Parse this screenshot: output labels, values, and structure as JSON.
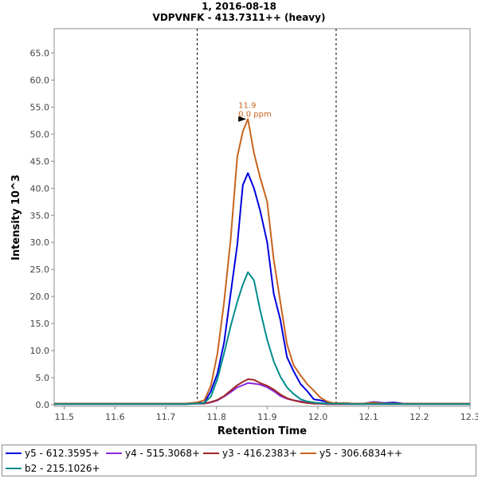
{
  "chart_data": {
    "type": "line",
    "title": "1, 2016-08-18",
    "subtitle": "VDPVNFK - 413.7311++ (heavy)",
    "xlabel": "Retention Time",
    "ylabel": "Intensity 10^3",
    "xlim": [
      11.48,
      12.3
    ],
    "ylim": [
      -0.3,
      69.5
    ],
    "x_ticks": [
      11.5,
      11.6,
      11.7,
      11.8,
      11.9,
      12.0,
      12.1,
      12.2,
      12.3
    ],
    "x_tick_labels": [
      "11.5",
      "11.6",
      "11.7",
      "11.8",
      "11.9",
      "12.0",
      "12.1",
      "12.2",
      "12.3"
    ],
    "y_ticks": [
      0,
      5,
      10,
      15,
      20,
      25,
      30,
      35,
      40,
      45,
      50,
      55,
      60,
      65
    ],
    "y_tick_labels": [
      "0.0",
      "5.0",
      "10.0",
      "15.0",
      "20.0",
      "25.0",
      "30.0",
      "35.0",
      "40.0",
      "45.0",
      "50.0",
      "55.0",
      "60.0",
      "65.0"
    ],
    "grid": false,
    "legend_position": "bottom",
    "boundaries": [
      11.762,
      12.036
    ],
    "annotation": {
      "label_rt": "11.9",
      "label_ppm": "0.0 ppm",
      "x": 11.862,
      "y": 52.8,
      "color": "#c8641e"
    },
    "x": [
      11.48,
      11.5,
      11.55,
      11.6,
      11.65,
      11.7,
      11.74,
      11.76,
      11.776,
      11.789,
      11.802,
      11.815,
      11.828,
      11.841,
      11.852,
      11.862,
      11.874,
      11.886,
      11.9,
      11.913,
      11.926,
      11.939,
      11.952,
      11.966,
      11.979,
      11.992,
      12.005,
      12.018,
      12.03,
      12.05,
      12.07,
      12.09,
      12.11,
      12.13,
      12.15,
      12.17,
      12.2,
      12.25,
      12.3
    ],
    "series": [
      {
        "name": "y5 - 612.3595+",
        "color": "#0000dc",
        "values": [
          0.2,
          0.2,
          0.2,
          0.2,
          0.2,
          0.2,
          0.2,
          0.4,
          0.3,
          2.5,
          5.8,
          11.5,
          20.5,
          29.5,
          40.6,
          42.8,
          40.0,
          35.9,
          30.0,
          20.5,
          15.7,
          8.8,
          6.2,
          3.8,
          2.5,
          1.0,
          0.8,
          0.5,
          0.2,
          0.3,
          0.2,
          0.2,
          0.5,
          0.3,
          0.4,
          0.2,
          0.2,
          0.2,
          0.2
        ]
      },
      {
        "name": "y4 - 515.3068+",
        "color": "#8c28dc",
        "values": [
          0.1,
          0.1,
          0.1,
          0.1,
          0.1,
          0.1,
          0.1,
          0.2,
          0.2,
          0.4,
          0.8,
          1.5,
          2.3,
          3.2,
          3.6,
          4.0,
          3.9,
          3.7,
          3.2,
          2.5,
          1.6,
          1.1,
          0.8,
          0.6,
          0.4,
          0.2,
          0.2,
          0.1,
          0.1,
          0.1,
          0.1,
          0.1,
          0.1,
          0.1,
          0.1,
          0.1,
          0.1,
          0.1,
          0.1
        ]
      },
      {
        "name": "y3 - 416.2383+",
        "color": "#a02828",
        "values": [
          0.1,
          0.1,
          0.1,
          0.1,
          0.1,
          0.1,
          0.1,
          0.2,
          0.2,
          0.5,
          0.9,
          1.6,
          2.6,
          3.6,
          4.2,
          4.7,
          4.6,
          4.0,
          3.5,
          2.8,
          1.9,
          1.2,
          0.8,
          0.5,
          0.3,
          0.2,
          0.2,
          0.1,
          0.1,
          0.1,
          0.1,
          0.1,
          0.1,
          0.1,
          0.1,
          0.1,
          0.1,
          0.1,
          0.1
        ]
      },
      {
        "name": "y5 - 306.6834++",
        "color": "#c8641e",
        "values": [
          0.2,
          0.2,
          0.2,
          0.2,
          0.2,
          0.2,
          0.2,
          0.4,
          0.8,
          3.5,
          9.5,
          19.0,
          30.5,
          45.8,
          50.5,
          52.8,
          46.5,
          42.0,
          37.5,
          26.8,
          19.0,
          11.2,
          7.3,
          5.4,
          3.8,
          2.6,
          1.3,
          0.6,
          0.3,
          0.3,
          0.2,
          0.2,
          0.4,
          0.2,
          0.2,
          0.2,
          0.2,
          0.2,
          0.2
        ]
      },
      {
        "name": "b2 - 215.1026+",
        "color": "#008c8c",
        "values": [
          0.1,
          0.1,
          0.1,
          0.1,
          0.1,
          0.1,
          0.1,
          0.2,
          0.3,
          1.5,
          4.8,
          9.5,
          14.5,
          19.0,
          22.2,
          24.5,
          23.0,
          17.5,
          12.0,
          8.0,
          5.2,
          3.2,
          2.0,
          1.0,
          0.6,
          0.4,
          0.3,
          0.2,
          0.2,
          0.2,
          0.1,
          0.1,
          0.1,
          0.1,
          0.1,
          0.1,
          0.1,
          0.1,
          0.1
        ]
      }
    ]
  }
}
